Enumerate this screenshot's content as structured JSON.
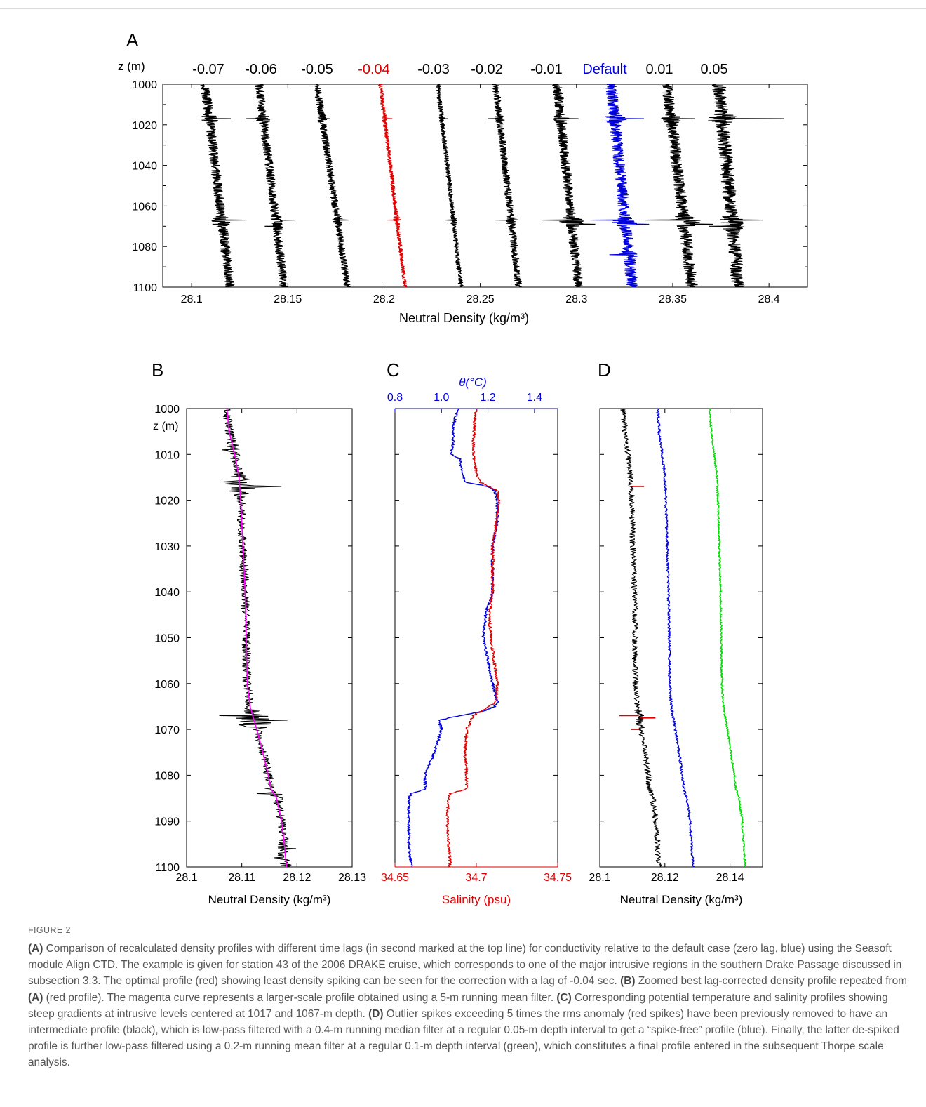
{
  "panel_labels": [
    "A",
    "B",
    "C",
    "D"
  ],
  "colors": {
    "black": "#000000",
    "red": "#e00000",
    "blue": "#0000dd",
    "magenta": "#ff00ff",
    "green": "#00dd00"
  },
  "chart_data": [
    {
      "id": "A",
      "type": "line",
      "ylabel": "z (m)",
      "xlabel": "Neutral Density (kg/m³)",
      "xlim": [
        28.085,
        28.42
      ],
      "ylim": [
        1000,
        1100
      ],
      "y_reversed": true,
      "xticks": [
        28.1,
        28.15,
        28.2,
        28.25,
        28.3,
        28.35,
        28.4
      ],
      "xtick_labels": [
        "28.1",
        "28.15",
        "28.2",
        "28.25",
        "28.3",
        "28.35",
        "28.4"
      ],
      "yticks": [
        1000,
        1020,
        1040,
        1060,
        1080,
        1100
      ],
      "ytick_labels": [
        "1000",
        "1020",
        "1040",
        "1060",
        "1080",
        "1100"
      ],
      "lag_labels": [
        "-0.07",
        "-0.06",
        "-0.05",
        "-0.04",
        "-0.03",
        "-0.02",
        "-0.01",
        "Default",
        "0.01",
        "0.05"
      ],
      "series": [
        {
          "label": "-0.07",
          "color": "black",
          "base_top": 28.107,
          "base_bottom": 28.12,
          "noise": 0.0025,
          "spikes": [
            [
              1017,
              0.011
            ],
            [
              1067,
              0.012
            ],
            [
              1069,
              -0.005
            ]
          ]
        },
        {
          "label": "-0.06",
          "color": "black",
          "base_top": 28.135,
          "base_bottom": 28.148,
          "noise": 0.0022,
          "spikes": [
            [
              1017,
              -0.009
            ],
            [
              1067,
              0.01
            ],
            [
              1070,
              -0.006
            ]
          ]
        },
        {
          "label": "-0.05",
          "color": "black",
          "base_top": 28.165,
          "base_bottom": 28.181,
          "noise": 0.0018,
          "spikes": [
            [
              1017,
              0.004
            ],
            [
              1067,
              0.006
            ]
          ]
        },
        {
          "label": "-0.04",
          "color": "red",
          "base_top": 28.198,
          "base_bottom": 28.211,
          "noise": 0.001,
          "spikes": [
            [
              1017,
              0.004
            ],
            [
              1067,
              -0.005
            ]
          ]
        },
        {
          "label": "-0.03",
          "color": "black",
          "base_top": 28.228,
          "base_bottom": 28.24,
          "noise": 0.0012,
          "spikes": [
            [
              1017,
              0.003
            ],
            [
              1067,
              -0.004
            ]
          ]
        },
        {
          "label": "-0.02",
          "color": "black",
          "base_top": 28.258,
          "base_bottom": 28.27,
          "noise": 0.0018,
          "spikes": [
            [
              1017,
              -0.006
            ],
            [
              1067,
              -0.008
            ]
          ]
        },
        {
          "label": "-0.01",
          "color": "black",
          "base_top": 28.29,
          "base_bottom": 28.301,
          "noise": 0.0025,
          "spikes": [
            [
              1017,
              0.009
            ],
            [
              1067,
              -0.015
            ],
            [
              1069,
              0.012
            ]
          ]
        },
        {
          "label": "Default",
          "color": "blue",
          "base_top": 28.318,
          "base_bottom": 28.329,
          "noise": 0.003,
          "spikes": [
            [
              1017,
              0.015
            ],
            [
              1067,
              -0.018
            ],
            [
              1069,
              0.012
            ],
            [
              1084,
              -0.01
            ]
          ]
        },
        {
          "label": "0.01",
          "color": "black",
          "base_top": 28.347,
          "base_bottom": 28.36,
          "noise": 0.003,
          "spikes": [
            [
              1017,
              0.012
            ],
            [
              1067,
              -0.02
            ],
            [
              1069,
              0.015
            ]
          ]
        },
        {
          "label": "0.05",
          "color": "black",
          "base_top": 28.374,
          "base_bottom": 28.384,
          "noise": 0.0035,
          "spikes": [
            [
              1017,
              0.032
            ],
            [
              1067,
              0.016
            ],
            [
              1070,
              -0.012
            ]
          ]
        }
      ]
    },
    {
      "id": "B",
      "type": "line",
      "ylabel": "z (m)",
      "xlabel": "Neutral Density (kg/m³)",
      "xlim": [
        28.1,
        28.13
      ],
      "ylim": [
        1000,
        1100
      ],
      "y_reversed": true,
      "xticks": [
        28.1,
        28.11,
        28.12,
        28.13
      ],
      "xtick_labels": [
        "28.1",
        "28.11",
        "28.12",
        "28.13"
      ],
      "yticks": [
        1000,
        1010,
        1020,
        1030,
        1040,
        1050,
        1060,
        1070,
        1080,
        1090,
        1100
      ],
      "ytick_labels": [
        "1000",
        "1010",
        "1020",
        "1030",
        "1040",
        "1050",
        "1060",
        "1070",
        "1080",
        "1090",
        "1100"
      ],
      "series": [
        {
          "name": "",
          "color": "black",
          "kind": "noisy",
          "noise": 0.0008
        },
        {
          "name": "",
          "color": "magenta",
          "kind": "smooth",
          "z": [
            1000,
            1005,
            1010,
            1015,
            1020,
            1030,
            1040,
            1050,
            1060,
            1065,
            1070,
            1075,
            1080,
            1083,
            1085,
            1090,
            1095,
            1100
          ],
          "x": [
            28.1073,
            28.1077,
            28.1087,
            28.1095,
            28.1098,
            28.1102,
            28.1106,
            28.1108,
            28.111,
            28.1115,
            28.1127,
            28.1138,
            28.1148,
            28.1153,
            28.1163,
            28.1172,
            28.1177,
            28.1181
          ]
        }
      ]
    },
    {
      "id": "C",
      "type": "line",
      "top_axis_label": "θ(°C)",
      "top_xlim": [
        0.8,
        1.5
      ],
      "top_xticks": [
        0.8,
        1.0,
        1.2,
        1.4
      ],
      "top_xtick_labels": [
        "0.8",
        "1.0",
        "1.2",
        "1.4"
      ],
      "xlabel": "Salinity (psu)",
      "xlim": [
        34.65,
        34.75
      ],
      "xticks": [
        34.65,
        34.7,
        34.75
      ],
      "xtick_labels": [
        "34.65",
        "34.7",
        "34.75"
      ],
      "ylim": [
        1000,
        1100
      ],
      "y_reversed": true,
      "series": [
        {
          "name": "",
          "color": "blue",
          "axis": "top",
          "z": [
            1000,
            1002,
            1004,
            1008,
            1010,
            1011,
            1014,
            1016,
            1017,
            1018,
            1020,
            1025,
            1030,
            1040,
            1045,
            1050,
            1055,
            1060,
            1064,
            1065,
            1066,
            1067,
            1068,
            1070,
            1075,
            1080,
            1083,
            1084,
            1085,
            1090,
            1095,
            1100
          ],
          "x": [
            1.07,
            1.06,
            1.05,
            1.05,
            1.04,
            1.08,
            1.09,
            1.1,
            1.2,
            1.23,
            1.24,
            1.24,
            1.22,
            1.22,
            1.19,
            1.18,
            1.2,
            1.22,
            1.24,
            1.23,
            1.18,
            1.08,
            0.99,
            1.0,
            0.97,
            0.93,
            0.93,
            0.87,
            0.86,
            0.86,
            0.86,
            0.87
          ]
        },
        {
          "name": "",
          "color": "red",
          "axis": "bottom",
          "z": [
            1000,
            1002,
            1004,
            1008,
            1010,
            1014,
            1016,
            1017,
            1018,
            1020,
            1025,
            1030,
            1040,
            1045,
            1050,
            1055,
            1060,
            1064,
            1065,
            1066,
            1067,
            1068,
            1070,
            1075,
            1080,
            1083,
            1084,
            1085,
            1090,
            1095,
            1100
          ],
          "x": [
            34.7,
            34.699,
            34.699,
            34.698,
            34.698,
            34.7,
            34.702,
            34.708,
            34.713,
            34.714,
            34.712,
            34.71,
            34.71,
            34.708,
            34.709,
            34.711,
            34.713,
            34.712,
            34.708,
            34.703,
            34.698,
            34.697,
            34.694,
            34.693,
            34.694,
            34.694,
            34.684,
            34.683,
            34.682,
            34.683,
            34.684
          ]
        }
      ]
    },
    {
      "id": "D",
      "type": "line",
      "xlabel": "Neutral Density (kg/m³)",
      "xlim": [
        28.1,
        28.15
      ],
      "xticks": [
        28.1,
        28.12,
        28.14
      ],
      "xtick_labels": [
        "28.1",
        "28.12",
        "28.14"
      ],
      "ylim": [
        1000,
        1100
      ],
      "y_reversed": true,
      "series": [
        {
          "name": "",
          "color": "black",
          "kind": "noisy",
          "offset": 0.0,
          "noise": 0.0009
        },
        {
          "name": "",
          "color": "red",
          "kind": "spikes",
          "spikes": [
            [
              1017,
              0.004
            ],
            [
              1067,
              -0.006
            ],
            [
              1067.5,
              0.005
            ],
            [
              1070,
              -0.003
            ]
          ]
        },
        {
          "name": "",
          "color": "blue",
          "kind": "filtered",
          "offset": 0.0105,
          "noise": 0.0004
        },
        {
          "name": "",
          "color": "green",
          "kind": "filtered",
          "offset": 0.0265,
          "noise": 0.0003
        }
      ]
    }
  ],
  "caption": {
    "figure_label": "FIGURE 2",
    "A_tag": "(A)",
    "A_text": " Comparison of recalculated density profiles with different time lags (in second marked at the top line) for conductivity relative to the default case (zero lag, blue) using the Seasoft module Align CTD. The example is given for station 43 of the 2006 DRAKE cruise, which corresponds to one of the major intrusive regions in the southern Drake Passage discussed in subsection 3.3. The optimal profile (red) showing least density spiking can be seen for the correction with a lag of -0.04 sec. ",
    "B_tag": "(B)",
    "B_text": " Zoomed best lag-corrected density profile repeated from ",
    "B_ref": "(A)",
    "B_text2": " (red profile). The magenta curve represents a larger-scale profile obtained using a 5-m running mean filter. ",
    "C_tag": "(C)",
    "C_text": " Corresponding potential temperature and salinity profiles showing steep gradients at intrusive levels centered at 1017 and 1067-m depth. ",
    "D_tag": "(D)",
    "D_text": " Outlier spikes exceeding 5 times the rms anomaly (red spikes) have been previously removed to have an intermediate profile (black), which is low-pass filtered with a 0.4-m running median filter at a regular 0.05-m depth interval to get a “spike-free” profile (blue). Finally, the latter de-spiked profile is further low-pass filtered using a 0.2-m running mean filter at a regular 0.1-m depth interval (green), which constitutes a final profile entered in the subsequent Thorpe scale analysis."
  }
}
